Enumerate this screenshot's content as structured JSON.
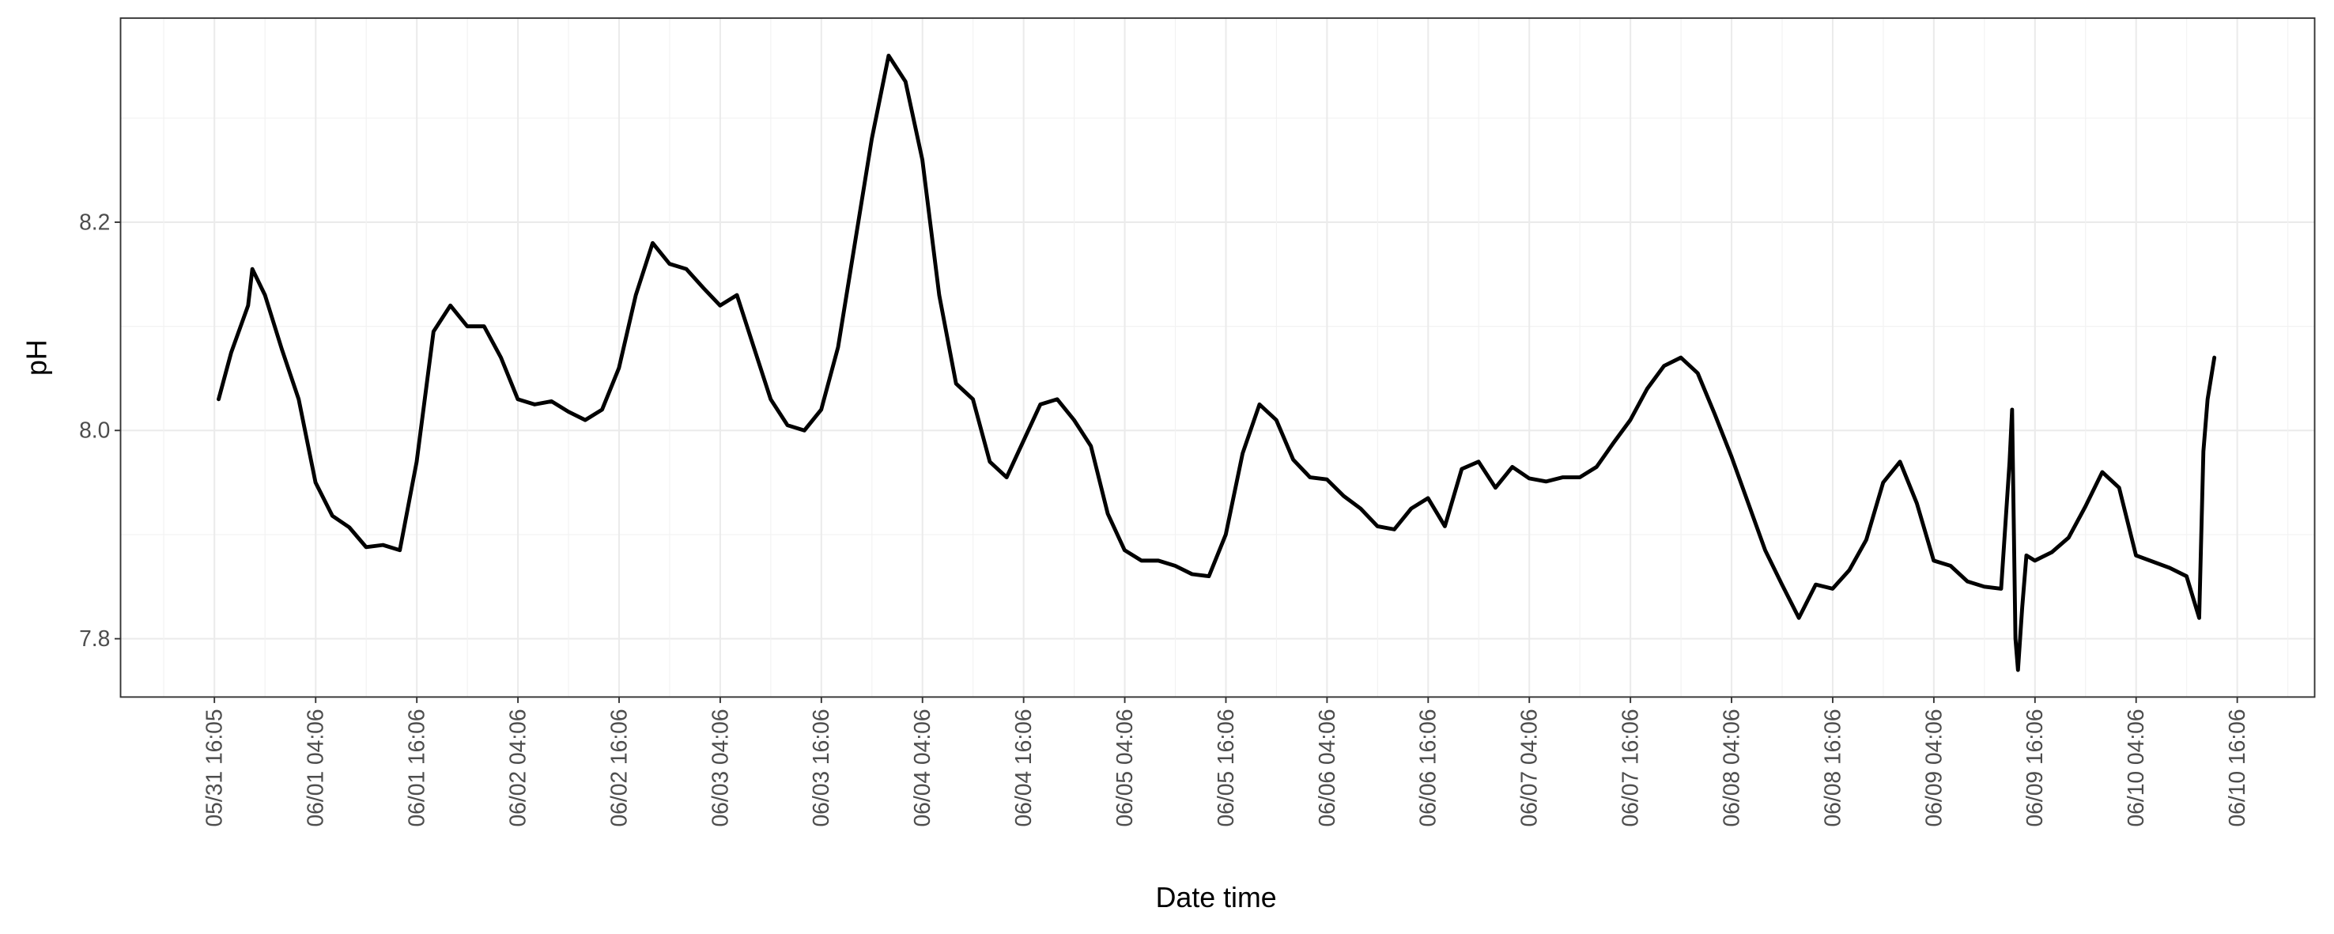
{
  "chart_data": {
    "type": "line",
    "x_label": "Date time",
    "y_label": "pH",
    "color": "#000000",
    "grid": true,
    "minor_grid": true,
    "x": [
      "05/31 16:35",
      "05/31 18:05",
      "05/31 20:05",
      "05/31 20:35",
      "05/31 22:05",
      "06/01 00:05",
      "06/01 02:05",
      "06/01 04:05",
      "06/01 06:05",
      "06/01 08:05",
      "06/01 10:05",
      "06/01 12:05",
      "06/01 14:05",
      "06/01 16:05",
      "06/01 18:05",
      "06/01 20:05",
      "06/01 22:05",
      "06/02 00:05",
      "06/02 02:05",
      "06/02 04:05",
      "06/02 06:05",
      "06/02 08:05",
      "06/02 10:05",
      "06/02 12:05",
      "06/02 14:05",
      "06/02 16:05",
      "06/02 18:05",
      "06/02 20:05",
      "06/02 22:05",
      "06/03 00:05",
      "06/03 02:05",
      "06/03 04:05",
      "06/03 06:05",
      "06/03 08:05",
      "06/03 10:05",
      "06/03 12:05",
      "06/03 14:05",
      "06/03 16:05",
      "06/03 18:05",
      "06/03 20:05",
      "06/03 22:05",
      "06/04 00:05",
      "06/04 02:05",
      "06/04 04:05",
      "06/04 06:05",
      "06/04 08:05",
      "06/04 10:05",
      "06/04 12:05",
      "06/04 14:05",
      "06/04 16:05",
      "06/04 18:05",
      "06/04 20:05",
      "06/04 22:05",
      "06/05 00:05",
      "06/05 02:05",
      "06/05 04:05",
      "06/05 06:05",
      "06/05 08:05",
      "06/05 10:05",
      "06/05 12:05",
      "06/05 14:05",
      "06/05 16:05",
      "06/05 18:05",
      "06/05 20:05",
      "06/05 22:05",
      "06/06 00:05",
      "06/06 02:05",
      "06/06 04:05",
      "06/06 06:05",
      "06/06 08:05",
      "06/06 10:05",
      "06/06 12:05",
      "06/06 14:05",
      "06/06 16:05",
      "06/06 18:05",
      "06/06 20:05",
      "06/06 22:05",
      "06/07 00:05",
      "06/07 02:05",
      "06/07 04:05",
      "06/07 06:05",
      "06/07 08:05",
      "06/07 10:05",
      "06/07 12:05",
      "06/07 14:05",
      "06/07 16:05",
      "06/07 18:05",
      "06/07 20:05",
      "06/07 22:05",
      "06/08 00:05",
      "06/08 02:05",
      "06/08 04:05",
      "06/08 06:05",
      "06/08 08:05",
      "06/08 10:05",
      "06/08 12:05",
      "06/08 14:05",
      "06/08 16:05",
      "06/08 18:05",
      "06/08 20:05",
      "06/08 22:05",
      "06/09 00:05",
      "06/09 02:05",
      "06/09 04:05",
      "06/09 06:05",
      "06/09 08:05",
      "06/09 10:05",
      "06/09 12:05",
      "06/09 13:05",
      "06/09 13:23",
      "06/09 13:47",
      "06/09 14:05",
      "06/09 14:35",
      "06/09 15:05",
      "06/09 16:05",
      "06/09 18:05",
      "06/09 20:05",
      "06/09 22:05",
      "06/10 00:05",
      "06/10 02:05",
      "06/10 04:05",
      "06/10 06:05",
      "06/10 08:05",
      "06/10 10:05",
      "06/10 11:35",
      "06/10 12:05",
      "06/10 12:35",
      "06/10 13:23"
    ],
    "values": [
      8.03,
      8.075,
      8.12,
      8.155,
      8.13,
      8.078,
      8.03,
      7.95,
      7.918,
      7.907,
      7.888,
      7.89,
      7.885,
      7.97,
      8.095,
      8.12,
      8.1,
      8.1,
      8.07,
      8.03,
      8.025,
      8.028,
      8.018,
      8.01,
      8.02,
      8.06,
      8.13,
      8.18,
      8.16,
      8.155,
      8.137,
      8.12,
      8.13,
      8.08,
      8.03,
      8.005,
      8.0,
      8.02,
      8.08,
      8.18,
      8.28,
      8.36,
      8.335,
      8.26,
      8.13,
      8.045,
      8.03,
      7.97,
      7.955,
      7.99,
      8.025,
      8.03,
      8.01,
      7.985,
      7.92,
      7.885,
      7.875,
      7.875,
      7.87,
      7.862,
      7.86,
      7.9,
      7.978,
      8.025,
      8.01,
      7.972,
      7.955,
      7.953,
      7.937,
      7.925,
      7.908,
      7.905,
      7.925,
      7.935,
      7.908,
      7.963,
      7.97,
      7.945,
      7.965,
      7.954,
      7.951,
      7.955,
      7.955,
      7.965,
      7.988,
      8.01,
      8.04,
      8.062,
      8.07,
      8.055,
      8.016,
      7.975,
      7.93,
      7.885,
      7.852,
      7.82,
      7.852,
      7.848,
      7.866,
      7.895,
      7.95,
      7.97,
      7.93,
      7.875,
      7.87,
      7.855,
      7.85,
      7.848,
      7.97,
      8.02,
      7.8,
      7.77,
      7.83,
      7.88,
      7.875,
      7.883,
      7.897,
      7.927,
      7.96,
      7.945,
      7.88,
      7.874,
      7.868,
      7.86,
      7.82,
      7.98,
      8.03,
      8.07
    ],
    "xlim": [
      "05/31 04:57",
      "06/11 01:17"
    ],
    "xticks": [
      "05/31 16:05",
      "06/01 04:06",
      "06/01 16:06",
      "06/02 04:06",
      "06/02 16:06",
      "06/03 04:06",
      "06/03 16:06",
      "06/04 04:06",
      "06/04 16:06",
      "06/05 04:06",
      "06/05 16:06",
      "06/06 04:06",
      "06/06 16:06",
      "06/07 04:06",
      "06/07 16:06",
      "06/08 04:06",
      "06/08 16:06",
      "06/09 04:06",
      "06/09 16:06",
      "06/10 04:06",
      "06/10 16:06"
    ],
    "ylim": [
      7.744,
      8.396
    ],
    "yticks": [
      7.8,
      {
        "value": 8,
        "label": "8.0"
      },
      8.2
    ]
  }
}
